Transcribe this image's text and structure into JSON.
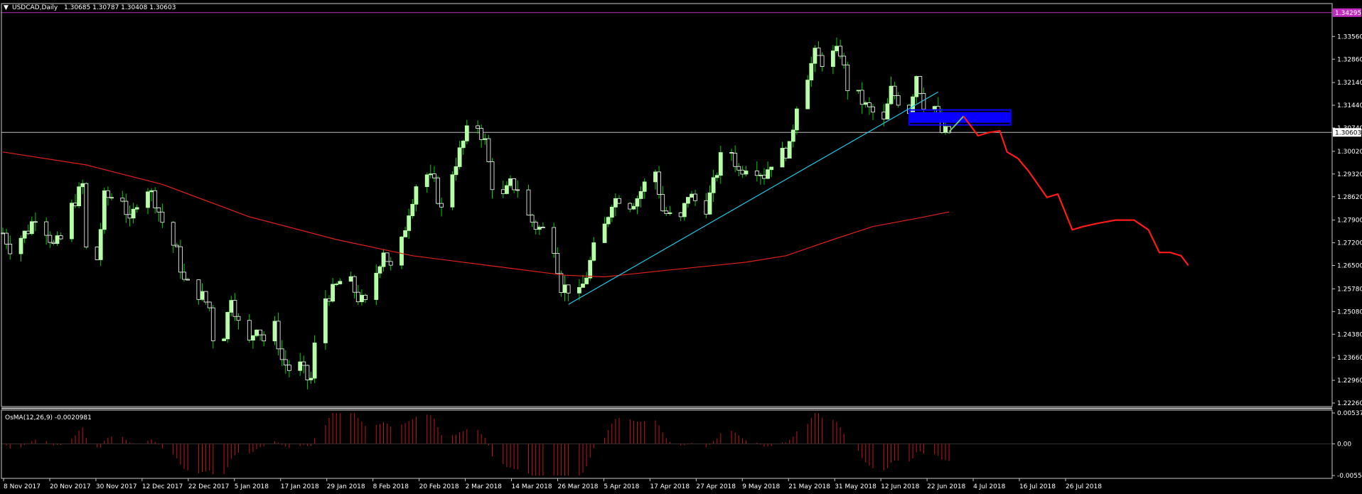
{
  "header": {
    "symbol": "USDCAD,Daily",
    "ohlc": "1.30685 1.30787 1.30408 1.30603"
  },
  "osma": {
    "label": "OsMA(12,26,9) -0.0020981",
    "scale": [
      "0.005372",
      "0.00",
      "-0.005519"
    ],
    "ylim": [
      -0.005519,
      0.005372
    ]
  },
  "chart_data": {
    "type": "candlestick",
    "ylim": [
      1.2226,
      1.3429
    ],
    "y_ticks": [
      "1.33560",
      "1.32860",
      "1.32140",
      "1.31440",
      "1.30740",
      "1.30020",
      "1.29320",
      "1.28620",
      "1.27900",
      "1.27200",
      "1.26500",
      "1.25780",
      "1.25080",
      "1.24380",
      "1.23660",
      "1.22960",
      "1.22260"
    ],
    "x_ticks": [
      "8 Nov 2017",
      "20 Nov 2017",
      "30 Nov 2017",
      "12 Dec 2017",
      "22 Dec 2017",
      "5 Jan 2018",
      "17 Jan 2018",
      "29 Jan 2018",
      "8 Feb 2018",
      "20 Feb 2018",
      "2 Mar 2018",
      "14 Mar 2018",
      "26 Mar 2018",
      "5 Apr 2018",
      "17 Apr 2018",
      "27 Apr 2018",
      "9 May 2018",
      "21 May 2018",
      "31 May 2018",
      "12 Jun 2018",
      "22 Jun 2018",
      "4 Jul 2018",
      "16 Jul 2018",
      "26 Jul 2018"
    ],
    "current_price": "1.30603",
    "resistance_level": "1.34295",
    "bull_color": "#b6ffa6",
    "bear_color": "#ffffff",
    "wick_color": "#00d000",
    "ma_color": "#e0201a",
    "forecast_color": "#ff1a1a",
    "trendline_color": "#22c8e8",
    "zone_color": "#0a00ff",
    "resistance_color": "#c02cc0",
    "anchors": [
      [
        "2017-11-08",
        1.275
      ],
      [
        "2017-11-10",
        1.2705
      ],
      [
        "2017-11-15",
        1.276
      ],
      [
        "2017-11-17",
        1.2805
      ],
      [
        "2017-11-20",
        1.276
      ],
      [
        "2017-11-22",
        1.271
      ],
      [
        "2017-11-24",
        1.273
      ],
      [
        "2017-11-27",
        1.283
      ],
      [
        "2017-11-30",
        1.2898
      ],
      [
        "2017-12-01",
        1.27
      ],
      [
        "2017-12-04",
        1.267
      ],
      [
        "2017-12-06",
        1.286
      ],
      [
        "2017-12-11",
        1.286
      ],
      [
        "2017-12-13",
        1.2775
      ],
      [
        "2017-12-15",
        1.285
      ],
      [
        "2017-12-18",
        1.289
      ],
      [
        "2017-12-20",
        1.285
      ],
      [
        "2017-12-22",
        1.2785
      ],
      [
        "2017-12-26",
        1.269
      ],
      [
        "2017-12-28",
        1.26
      ],
      [
        "2018-01-02",
        1.2555
      ],
      [
        "2018-01-04",
        1.252
      ],
      [
        "2018-01-05",
        1.243
      ],
      [
        "2018-01-08",
        1.244
      ],
      [
        "2018-01-10",
        1.256
      ],
      [
        "2018-01-12",
        1.247
      ],
      [
        "2018-01-15",
        1.241
      ],
      [
        "2018-01-17",
        1.247
      ],
      [
        "2018-01-19",
        1.242
      ],
      [
        "2018-01-22",
        1.246
      ],
      [
        "2018-01-24",
        1.236
      ],
      [
        "2018-01-26",
        1.233
      ],
      [
        "2018-01-29",
        1.234
      ],
      [
        "2018-01-31",
        1.23
      ],
      [
        "2018-02-01",
        1.23
      ],
      [
        "2018-02-02",
        1.24
      ],
      [
        "2018-02-05",
        1.255
      ],
      [
        "2018-02-07",
        1.257
      ],
      [
        "2018-02-09",
        1.26
      ],
      [
        "2018-02-12",
        1.2595
      ],
      [
        "2018-02-14",
        1.255
      ],
      [
        "2018-02-16",
        1.253
      ],
      [
        "2018-02-19",
        1.263
      ],
      [
        "2018-02-21",
        1.27
      ],
      [
        "2018-02-23",
        1.264
      ],
      [
        "2018-02-26",
        1.272
      ],
      [
        "2018-02-28",
        1.282
      ],
      [
        "2018-03-02",
        1.29
      ],
      [
        "2018-03-05",
        1.293
      ],
      [
        "2018-03-07",
        1.29
      ],
      [
        "2018-03-09",
        1.282
      ],
      [
        "2018-03-12",
        1.294
      ],
      [
        "2018-03-14",
        1.3
      ],
      [
        "2018-03-16",
        1.306
      ],
      [
        "2018-03-19",
        1.308
      ],
      [
        "2018-03-21",
        1.303
      ],
      [
        "2018-03-23",
        1.29
      ],
      [
        "2018-03-26",
        1.286
      ],
      [
        "2018-03-28",
        1.29
      ],
      [
        "2018-03-30",
        1.289
      ],
      [
        "2018-04-02",
        1.28
      ],
      [
        "2018-04-04",
        1.277
      ],
      [
        "2018-04-06",
        1.276
      ],
      [
        "2018-04-09",
        1.271
      ],
      [
        "2018-04-11",
        1.2585
      ],
      [
        "2018-04-13",
        1.258
      ],
      [
        "2018-04-16",
        1.256
      ],
      [
        "2018-04-18",
        1.262
      ],
      [
        "2018-04-20",
        1.27
      ],
      [
        "2018-04-23",
        1.277
      ],
      [
        "2018-04-25",
        1.285
      ],
      [
        "2018-04-27",
        1.286
      ],
      [
        "2018-04-30",
        1.284
      ],
      [
        "2018-05-02",
        1.286
      ],
      [
        "2018-05-04",
        1.29
      ],
      [
        "2018-05-07",
        1.294
      ],
      [
        "2018-05-09",
        1.282
      ],
      [
        "2018-05-11",
        1.28
      ],
      [
        "2018-05-14",
        1.279
      ],
      [
        "2018-05-16",
        1.287
      ],
      [
        "2018-05-18",
        1.285
      ],
      [
        "2018-05-21",
        1.283
      ],
      [
        "2018-05-23",
        1.29
      ],
      [
        "2018-05-25",
        1.298
      ],
      [
        "2018-05-28",
        1.3
      ],
      [
        "2018-05-30",
        1.294
      ],
      [
        "2018-06-01",
        1.296
      ],
      [
        "2018-06-04",
        1.295
      ],
      [
        "2018-06-06",
        1.293
      ],
      [
        "2018-06-08",
        1.297
      ],
      [
        "2018-06-11",
        1.2995
      ],
      [
        "2018-06-13",
        1.301
      ],
      [
        "2018-06-15",
        1.315
      ],
      [
        "2018-06-18",
        1.324
      ],
      [
        "2018-06-20",
        1.33
      ],
      [
        "2018-06-22",
        1.328
      ],
      [
        "2018-06-25",
        1.33
      ],
      [
        "2018-06-27",
        1.331
      ],
      [
        "2018-06-29",
        1.32
      ],
      [
        "2018-07-02",
        1.317
      ],
      [
        "2018-07-04",
        1.314
      ],
      [
        "2018-07-06",
        1.312
      ],
      [
        "2018-07-09",
        1.309
      ],
      [
        "2018-07-11",
        1.319
      ],
      [
        "2018-07-13",
        1.316
      ],
      [
        "2018-07-16",
        1.313
      ],
      [
        "2018-07-18",
        1.324
      ],
      [
        "2018-07-20",
        1.315
      ],
      [
        "2018-07-23",
        1.314
      ],
      [
        "2018-07-25",
        1.306
      ],
      [
        "2018-07-27",
        1.306
      ]
    ],
    "ma200": [
      [
        "2017-11-08",
        1.3
      ],
      [
        "2017-12-01",
        1.296
      ],
      [
        "2017-12-22",
        1.29
      ],
      [
        "2018-01-15",
        1.28
      ],
      [
        "2018-02-08",
        1.273
      ],
      [
        "2018-03-01",
        1.268
      ],
      [
        "2018-03-22",
        1.265
      ],
      [
        "2018-04-12",
        1.262
      ],
      [
        "2018-04-23",
        1.2615
      ],
      [
        "2018-05-10",
        1.2635
      ],
      [
        "2018-06-01",
        1.266
      ],
      [
        "2018-06-12",
        1.268
      ],
      [
        "2018-06-25",
        1.273
      ],
      [
        "2018-07-06",
        1.277
      ],
      [
        "2018-07-18",
        1.2795
      ],
      [
        "2018-07-27",
        1.2815
      ]
    ],
    "trendline": [
      [
        "2018-04-13",
        1.253
      ],
      [
        "2018-07-24",
        1.3185
      ]
    ],
    "supply_zone": {
      "from": "2018-07-16",
      "to": "2018-08-13",
      "high": 1.3123,
      "low": 1.309
    },
    "forecast_green": [
      [
        "2018-07-27",
        1.3062
      ],
      [
        "2018-07-31",
        1.311
      ]
    ],
    "forecast_red": [
      [
        "2018-07-31",
        1.311
      ],
      [
        "2018-08-02",
        1.308
      ],
      [
        "2018-08-04",
        1.305
      ],
      [
        "2018-08-07",
        1.306
      ],
      [
        "2018-08-10",
        1.3065
      ],
      [
        "2018-08-12",
        1.3
      ],
      [
        "2018-08-15",
        1.298
      ],
      [
        "2018-08-18",
        1.294
      ],
      [
        "2018-08-23",
        1.286
      ],
      [
        "2018-08-26",
        1.287
      ],
      [
        "2018-08-30",
        1.276
      ],
      [
        "2018-09-02",
        1.277
      ],
      [
        "2018-09-06",
        1.278
      ],
      [
        "2018-09-11",
        1.279
      ],
      [
        "2018-09-16",
        1.279
      ],
      [
        "2018-09-20",
        1.276
      ],
      [
        "2018-09-23",
        1.269
      ],
      [
        "2018-09-26",
        1.269
      ],
      [
        "2018-09-29",
        1.268
      ],
      [
        "2018-10-01",
        1.265
      ]
    ]
  }
}
